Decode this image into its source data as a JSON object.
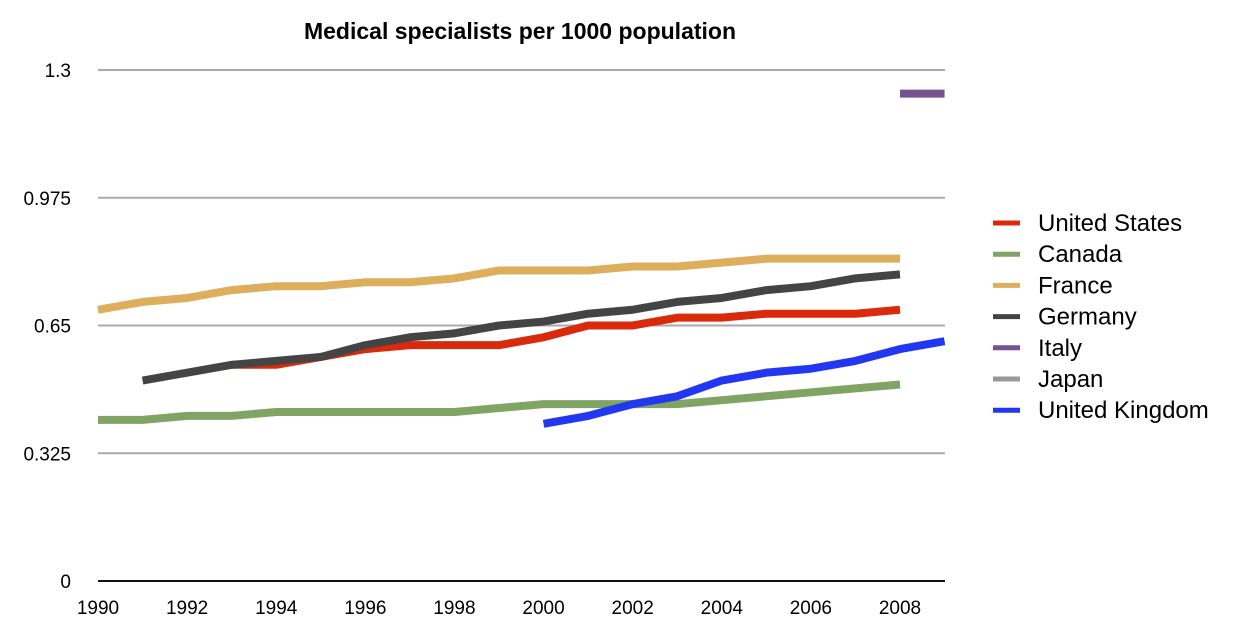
{
  "chart_data": {
    "type": "line",
    "title": "Medical specialists per 1000 population",
    "xlabel": "",
    "ylabel": "",
    "ylim": [
      0,
      1.3
    ],
    "xlim": [
      1990,
      2009
    ],
    "y_ticks": [
      "0",
      "0.325",
      "0.65",
      "0.975",
      "1.3"
    ],
    "y_tick_values": [
      0,
      0.325,
      0.65,
      0.975,
      1.3
    ],
    "x_ticks": [
      "1990",
      "1992",
      "1994",
      "1996",
      "1998",
      "2000",
      "2002",
      "2004",
      "2006",
      "2008"
    ],
    "x_tick_values": [
      1990,
      1992,
      1994,
      1996,
      1998,
      2000,
      2002,
      2004,
      2006,
      2008
    ],
    "grid": true,
    "legend_position": "right",
    "series": [
      {
        "name": "United States",
        "color": "#d92b0c",
        "x": [
          1993,
          1994,
          1995,
          1996,
          1997,
          1998,
          1999,
          2000,
          2001,
          2002,
          2003,
          2004,
          2005,
          2006,
          2007,
          2008
        ],
        "values": [
          0.55,
          0.55,
          0.57,
          0.59,
          0.6,
          0.6,
          0.6,
          0.62,
          0.65,
          0.65,
          0.67,
          0.67,
          0.68,
          0.68,
          0.68,
          0.69
        ]
      },
      {
        "name": "Canada",
        "color": "#7fa464",
        "x": [
          1990,
          1991,
          1992,
          1993,
          1994,
          1995,
          1996,
          1997,
          1998,
          1999,
          2000,
          2001,
          2002,
          2003,
          2004,
          2005,
          2006,
          2007,
          2008
        ],
        "values": [
          0.41,
          0.41,
          0.42,
          0.42,
          0.43,
          0.43,
          0.43,
          0.43,
          0.43,
          0.44,
          0.45,
          0.45,
          0.45,
          0.45,
          0.46,
          0.47,
          0.48,
          0.49,
          0.5
        ]
      },
      {
        "name": "France",
        "color": "#ddae5c",
        "x": [
          1990,
          1991,
          1992,
          1993,
          1994,
          1995,
          1996,
          1997,
          1998,
          1999,
          2000,
          2001,
          2002,
          2003,
          2004,
          2005,
          2006,
          2007,
          2008
        ],
        "values": [
          0.69,
          0.71,
          0.72,
          0.74,
          0.75,
          0.75,
          0.76,
          0.76,
          0.77,
          0.79,
          0.79,
          0.79,
          0.8,
          0.8,
          0.81,
          0.82,
          0.82,
          0.82,
          0.82
        ]
      },
      {
        "name": "Germany",
        "color": "#444444",
        "x": [
          1991,
          1992,
          1993,
          1994,
          1995,
          1996,
          1997,
          1998,
          1999,
          2000,
          2001,
          2002,
          2003,
          2004,
          2005,
          2006,
          2007,
          2008
        ],
        "values": [
          0.51,
          0.53,
          0.55,
          0.56,
          0.57,
          0.6,
          0.62,
          0.63,
          0.65,
          0.66,
          0.68,
          0.69,
          0.71,
          0.72,
          0.74,
          0.75,
          0.77,
          0.78
        ]
      },
      {
        "name": "Italy",
        "color": "#76528e",
        "x": [
          2008,
          2009
        ],
        "values": [
          1.24,
          1.24
        ]
      },
      {
        "name": "Japan",
        "color": "#999999",
        "x": [],
        "values": []
      },
      {
        "name": "United Kingdom",
        "color": "#2137f0",
        "x": [
          2000,
          2001,
          2002,
          2003,
          2004,
          2005,
          2006,
          2007,
          2008,
          2009
        ],
        "values": [
          0.4,
          0.42,
          0.45,
          0.47,
          0.51,
          0.53,
          0.54,
          0.56,
          0.59,
          0.61
        ]
      }
    ]
  }
}
